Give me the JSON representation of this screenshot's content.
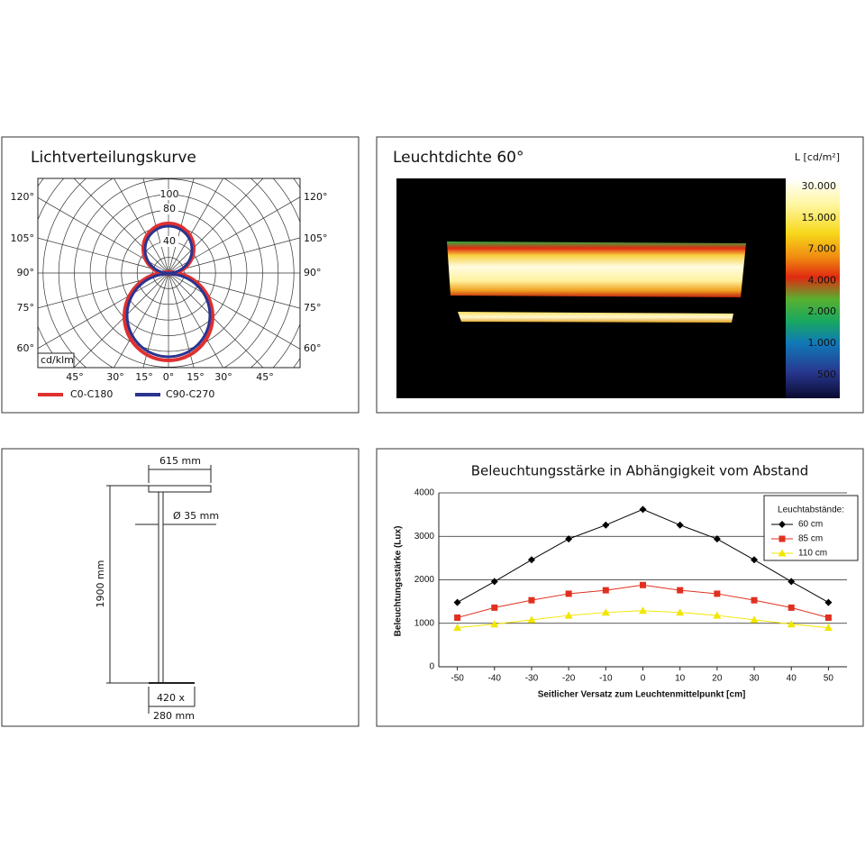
{
  "polar": {
    "title": "Lichtverteilungskurve",
    "angle_labels_left": [
      "120°",
      "105°",
      "90°",
      "75°",
      "60°"
    ],
    "angle_labels_right": [
      "120°",
      "105°",
      "90°",
      "75°",
      "60°"
    ],
    "radial_labels": [
      "100",
      "80",
      "40"
    ],
    "bottom_labels": [
      "45°",
      "30°",
      "15°",
      "0°",
      "15°",
      "30°",
      "45°"
    ],
    "unit": "cd/klm",
    "legend": [
      "C0-C180",
      "C90-C270"
    ]
  },
  "luminance": {
    "title": "Leuchtdichte 60°",
    "unit": "L [cd/m²]",
    "scale_labels": [
      "30.000",
      "15.000",
      "7.000",
      "4.000",
      "2.000",
      "1.000",
      "500"
    ]
  },
  "dimensions": {
    "width": "615 mm",
    "diameter": "Ø 35 mm",
    "height": "1900 mm",
    "base_1": "420 x",
    "base_2": "280 mm"
  },
  "chart_data": {
    "type": "line",
    "title": "Beleuchtungsstärke in Abhängigkeit vom Abstand",
    "x_label": "Seitlicher Versatz zum Leuchtenmittelpunkt [cm]",
    "y_label": "Beleuchtungsstärke (Lux)",
    "x": [
      -50,
      -40,
      -30,
      -20,
      -10,
      0,
      10,
      20,
      30,
      40,
      50
    ],
    "xlim": [
      -55,
      55
    ],
    "xticks": [
      -50,
      -40,
      -30,
      -20,
      -10,
      0,
      10,
      20,
      30,
      40,
      50
    ],
    "ylim": [
      0,
      4000
    ],
    "yticks": [
      0,
      1000,
      2000,
      3000,
      4000
    ],
    "grid": true,
    "legend_title": "Leuchtabstände:",
    "legend_position": "upper right",
    "series": [
      {
        "name": "60 cm",
        "color": "#000000",
        "marker": "diamond",
        "values": [
          1480,
          1960,
          2460,
          2940,
          3260,
          3620,
          3260,
          2940,
          2460,
          1960,
          1480
        ]
      },
      {
        "name": "85 cm",
        "color": "#e03020",
        "marker": "square",
        "values": [
          1130,
          1360,
          1530,
          1680,
          1760,
          1880,
          1760,
          1680,
          1530,
          1360,
          1130
        ]
      },
      {
        "name": "110 cm",
        "color": "#f2e600",
        "marker": "triangle",
        "values": [
          900,
          980,
          1080,
          1180,
          1250,
          1290,
          1250,
          1180,
          1080,
          980,
          900
        ]
      }
    ]
  }
}
